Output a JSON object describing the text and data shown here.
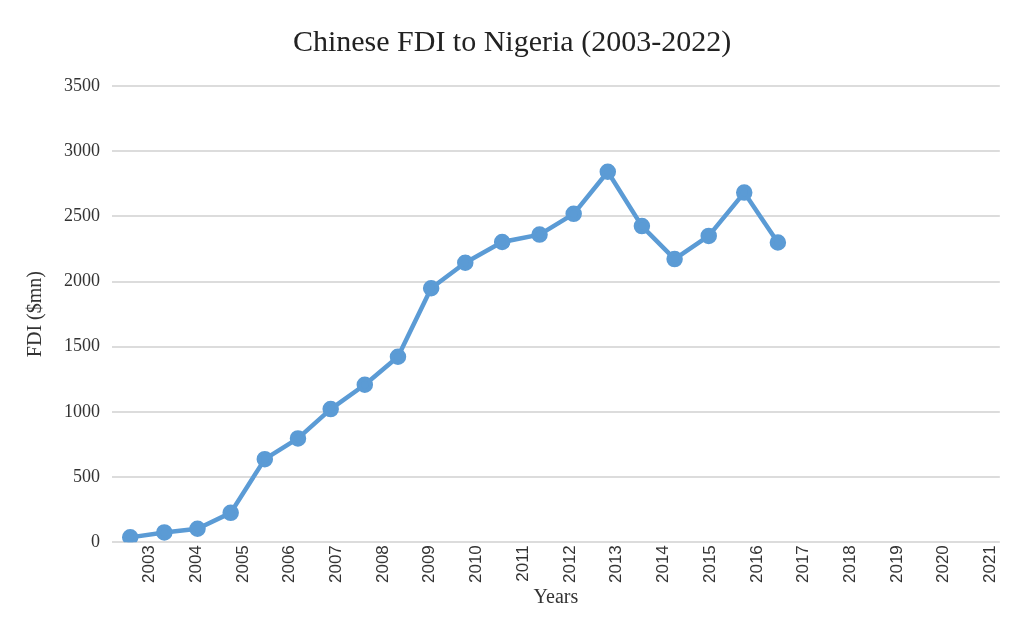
{
  "chart_data": {
    "type": "line",
    "title": "Chinese FDI to Nigeria (2003-2022)",
    "xlabel": "Years",
    "ylabel": "FDI ($mn)",
    "x": [
      2002.59,
      2003.32,
      2004.03,
      2004.74,
      2005.47,
      2006.18,
      2006.88,
      2007.61,
      2008.32,
      2009.03,
      2009.76,
      2010.55,
      2011.35,
      2012.08,
      2012.81,
      2013.54,
      2014.24,
      2014.97,
      2015.73,
      2016.45
    ],
    "series": [
      {
        "color": "#5b9bd5",
        "values": [
          37,
          75,
          103,
          225,
          637,
          796,
          1021,
          1208,
          1423,
          1948,
          2144,
          2303,
          2360,
          2519,
          2842,
          2425,
          2172,
          2350,
          2682,
          2299
        ]
      }
    ],
    "xlim": [
      2002.2,
      2021.2
    ],
    "xticks": [
      2003,
      2004,
      2005,
      2006,
      2007,
      2008,
      2009,
      2010,
      2011,
      2012,
      2013,
      2014,
      2015,
      2016,
      2017,
      2018,
      2019,
      2020,
      2021
    ],
    "ylim": [
      0,
      3500
    ],
    "yticks": [
      0,
      500,
      1000,
      1500,
      2000,
      2500,
      3000,
      3500
    ],
    "grid": "y",
    "legend": false,
    "marker": "circle",
    "line_style": "solid"
  }
}
